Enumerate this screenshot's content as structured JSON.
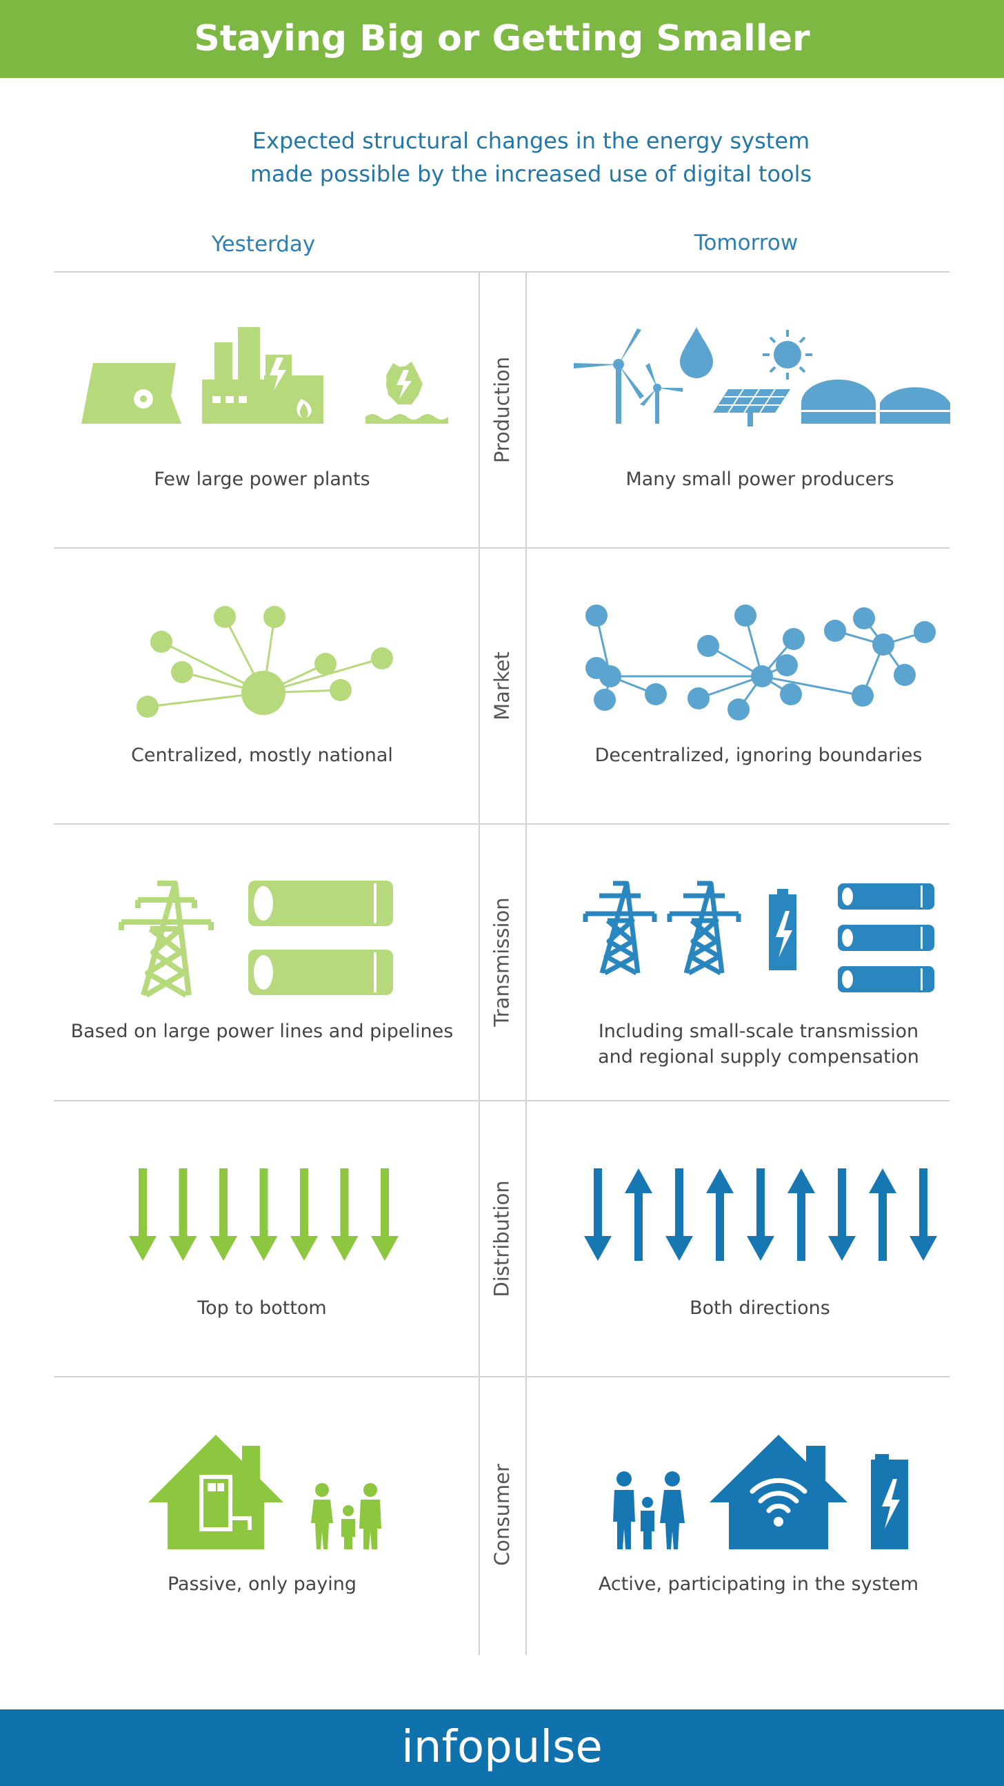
{
  "title": "Staying Big or Getting Smaller",
  "subtitle": {
    "line1": "Expected structural changes in the energy system",
    "line2": "made possible by the increased use of digital tools"
  },
  "columns": {
    "left": "Yesterday",
    "right": "Tomorrow"
  },
  "rows": [
    {
      "category": "Production",
      "left": "Few large power plants",
      "right": "Many small power producers"
    },
    {
      "category": "Market",
      "left": "Centralized, mostly national",
      "right": "Decentralized, ignoring boundaries"
    },
    {
      "category": "Transmission",
      "left": "Based on large power lines and pipelines",
      "right_line1": "Including small-scale transmission",
      "right_line2": "and regional supply compensation"
    },
    {
      "category": "Distribution",
      "left": "Top to bottom",
      "right": "Both directions"
    },
    {
      "category": "Consumer",
      "left": "Passive, only paying",
      "right": "Active, participating in the system"
    }
  ],
  "footer": {
    "logo": "infopulse"
  },
  "colors": {
    "header_green": "#7db843",
    "footer_blue": "#0f72ad",
    "icon_light_green": "#b5d97b",
    "icon_green": "#8dc63f",
    "icon_light_blue": "#5ba4cf",
    "icon_blue": "#1677b3"
  }
}
